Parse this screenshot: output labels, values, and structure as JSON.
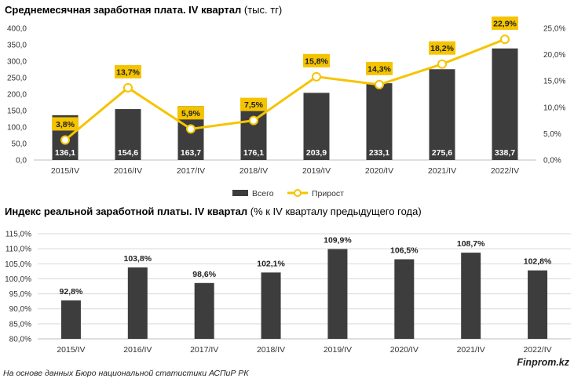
{
  "chart_data": [
    {
      "type": "bar",
      "title": "Среднемесячная заработная плата. IV квартал",
      "subtitle": "(тыс. тг)",
      "categories": [
        "2015/IV",
        "2016/IV",
        "2017/IV",
        "2018/IV",
        "2019/IV",
        "2020/IV",
        "2021/IV",
        "2022/IV"
      ],
      "series": [
        {
          "name": "Всего",
          "type": "bar",
          "axis": "left",
          "values": [
            136.1,
            154.6,
            163.7,
            176.1,
            203.9,
            233.1,
            275.6,
            338.7
          ],
          "labels": [
            "136,1",
            "154,6",
            "163,7",
            "176,1",
            "203,9",
            "233,1",
            "275,6",
            "338,7"
          ]
        },
        {
          "name": "Прирост",
          "type": "line",
          "axis": "right",
          "values": [
            3.8,
            13.7,
            5.9,
            7.5,
            15.8,
            14.3,
            18.2,
            22.9
          ],
          "labels": [
            "3,8%",
            "13,7%",
            "5,9%",
            "7,5%",
            "15,8%",
            "14,3%",
            "18,2%",
            "22,9%"
          ]
        }
      ],
      "ylim": [
        0,
        400
      ],
      "yticks": [
        "0,0",
        "50,0",
        "100,0",
        "150,0",
        "200,0",
        "250,0",
        "300,0",
        "350,0",
        "400,0"
      ],
      "y2lim": [
        0,
        25
      ],
      "y2ticks": [
        "0,0%",
        "5,0%",
        "10,0%",
        "15,0%",
        "20,0%",
        "25,0%"
      ],
      "grid": false,
      "legend": "bottom-center",
      "colors": {
        "bar": "#3d3d3d",
        "line": "#f5c400",
        "label_bg": "#f5c400",
        "bar_label": "#ffffff"
      }
    },
    {
      "type": "bar",
      "title": "Индекс реальной заработной платы. IV квартал",
      "subtitle": "(% к IV кварталу предыдущего года)",
      "categories": [
        "2015/IV",
        "2016/IV",
        "2017/IV",
        "2018/IV",
        "2019/IV",
        "2020/IV",
        "2021/IV",
        "2022/IV"
      ],
      "series": [
        {
          "values": [
            92.8,
            103.8,
            98.6,
            102.1,
            109.9,
            106.5,
            108.7,
            102.8
          ],
          "labels": [
            "92,8%",
            "103,8%",
            "98,6%",
            "102,1%",
            "109,9%",
            "106,5%",
            "108,7%",
            "102,8%"
          ]
        }
      ],
      "ylim": [
        80,
        115
      ],
      "yticks": [
        "80,0%",
        "85,0%",
        "90,0%",
        "95,0%",
        "100,0%",
        "105,0%",
        "110,0%",
        "115,0%"
      ],
      "grid": true,
      "colors": {
        "bar": "#3d3d3d",
        "grid": "#d9d9d9"
      }
    }
  ],
  "footer": {
    "source": "На основе данных Бюро национальной статистики АСПиР РК",
    "brand": "Finprom.kz"
  }
}
